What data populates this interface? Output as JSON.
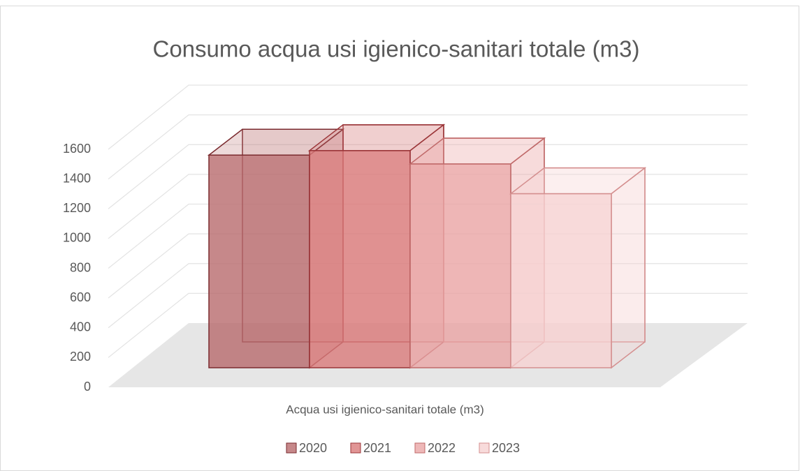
{
  "chart_data": {
    "type": "bar3d",
    "title": "Consumo acqua usi igienico-sanitari totale (m3)",
    "categories": [
      "Acqua usi igienico-sanitari totale (m3)"
    ],
    "series": [
      {
        "name": "2020",
        "color": "#b86a6d",
        "stroke": "#7a2a2e",
        "values": [
          1430
        ]
      },
      {
        "name": "2021",
        "color": "#d97a7b",
        "stroke": "#9a3538",
        "values": [
          1460
        ]
      },
      {
        "name": "2022",
        "color": "#eaa6a6",
        "stroke": "#c06a6a",
        "values": [
          1370
        ]
      },
      {
        "name": "2023",
        "color": "#f6d2d2",
        "stroke": "#d48f8f",
        "values": [
          1170
        ]
      }
    ],
    "ylim": [
      0,
      1600
    ],
    "yticks": [
      0,
      200,
      400,
      600,
      800,
      1000,
      1200,
      1400,
      1600
    ],
    "grid": true,
    "legend": "bottom"
  }
}
